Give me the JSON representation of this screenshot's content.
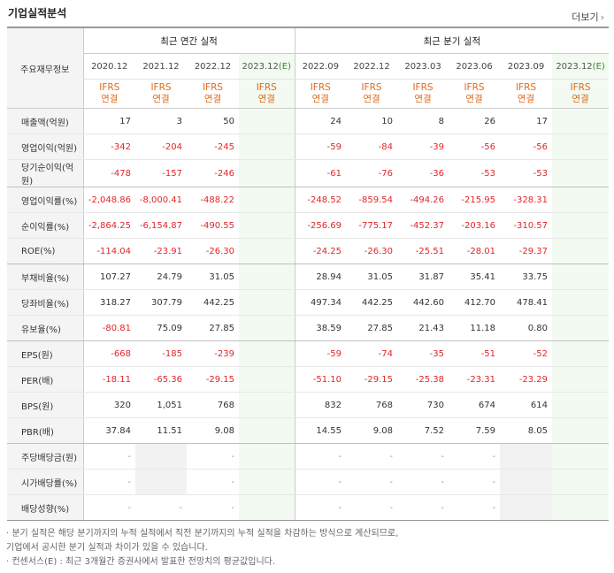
{
  "title": "기업실적분석",
  "more_label": "더보기",
  "more_icon": "chevron-right-icon",
  "colors": {
    "negative": "#e2252a",
    "accounting": "#e06a1a",
    "estimate_bg": "#f3faf1",
    "estimate_tag": "#3a8a2e"
  },
  "header": {
    "row_label": "주요재무정보",
    "annual_group": "최근 연간 실적",
    "quarter_group": "최근 분기 실적",
    "annual_periods": [
      "2020.12",
      "2021.12",
      "2022.12",
      "2023.12(E)"
    ],
    "quarter_periods": [
      "2022.09",
      "2022.12",
      "2023.03",
      "2023.06",
      "2023.09",
      "2023.12(E)"
    ],
    "accounting_line1": "IFRS",
    "accounting_line2": "연결"
  },
  "rows": [
    {
      "label": "매출액(억원)",
      "values": [
        "17",
        "3",
        "50",
        "",
        "24",
        "10",
        "8",
        "26",
        "17",
        ""
      ]
    },
    {
      "label": "영업이익(억원)",
      "values": [
        "-342",
        "-204",
        "-245",
        "",
        "-59",
        "-84",
        "-39",
        "-56",
        "-56",
        ""
      ]
    },
    {
      "label": "당기순이익(억원)",
      "values": [
        "-478",
        "-157",
        "-246",
        "",
        "-61",
        "-76",
        "-36",
        "-53",
        "-53",
        ""
      ]
    },
    {
      "label": "영업이익률(%)",
      "values": [
        "-2,048.86",
        "-8,000.41",
        "-488.22",
        "",
        "-248.52",
        "-859.54",
        "-494.26",
        "-215.95",
        "-328.31",
        ""
      ]
    },
    {
      "label": "순이익률(%)",
      "values": [
        "-2,864.25",
        "-6,154.87",
        "-490.55",
        "",
        "-256.69",
        "-775.17",
        "-452.37",
        "-203.16",
        "-310.57",
        ""
      ]
    },
    {
      "label": "ROE(%)",
      "values": [
        "-114.04",
        "-23.91",
        "-26.30",
        "",
        "-24.25",
        "-26.30",
        "-25.51",
        "-28.01",
        "-29.37",
        ""
      ]
    },
    {
      "label": "부채비율(%)",
      "values": [
        "107.27",
        "24.79",
        "31.05",
        "",
        "28.94",
        "31.05",
        "31.87",
        "35.41",
        "33.75",
        ""
      ]
    },
    {
      "label": "당좌비율(%)",
      "values": [
        "318.27",
        "307.79",
        "442.25",
        "",
        "497.34",
        "442.25",
        "442.60",
        "412.70",
        "478.41",
        ""
      ]
    },
    {
      "label": "유보율(%)",
      "values": [
        "-80.81",
        "75.09",
        "27.85",
        "",
        "38.59",
        "27.85",
        "21.43",
        "11.18",
        "0.80",
        ""
      ]
    },
    {
      "label": "EPS(원)",
      "values": [
        "-668",
        "-185",
        "-239",
        "",
        "-59",
        "-74",
        "-35",
        "-51",
        "-52",
        ""
      ]
    },
    {
      "label": "PER(배)",
      "values": [
        "-18.11",
        "-65.36",
        "-29.15",
        "",
        "-51.10",
        "-29.15",
        "-25.38",
        "-23.31",
        "-23.29",
        ""
      ]
    },
    {
      "label": "BPS(원)",
      "values": [
        "320",
        "1,051",
        "768",
        "",
        "832",
        "768",
        "730",
        "674",
        "614",
        ""
      ]
    },
    {
      "label": "PBR(배)",
      "values": [
        "37.84",
        "11.51",
        "9.08",
        "",
        "14.55",
        "9.08",
        "7.52",
        "7.59",
        "8.05",
        ""
      ]
    },
    {
      "label": "주당배당금(원)",
      "values": [
        "-",
        "",
        "-",
        "",
        "-",
        "-",
        "-",
        "-",
        "",
        ""
      ]
    },
    {
      "label": "시가배당률(%)",
      "values": [
        "-",
        "",
        "-",
        "",
        "-",
        "-",
        "-",
        "-",
        "",
        ""
      ]
    },
    {
      "label": "배당성향(%)",
      "values": [
        "-",
        "-",
        "-",
        "",
        "-",
        "-",
        "-",
        "-",
        "",
        ""
      ]
    }
  ],
  "notes": [
    "· 분기 실적은 해당 분기까지의 누적 실적에서 직전 분기까지의 누적 실적을 차감하는 방식으로 계산되므로,",
    "   기업에서 공시한 분기 실적과 차이가 있을 수 있습니다.",
    "· 컨센서스(E) : 최근 3개월간 증권사에서 발표한 전망치의 평균값입니다."
  ]
}
